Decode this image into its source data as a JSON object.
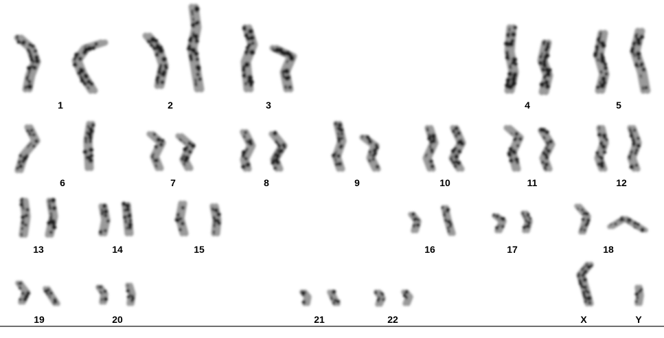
{
  "figure": {
    "kind": "human karyotype (G-banded)",
    "baseline_color": "#6d6d6d",
    "band_color": "#1a1a1a",
    "arm_color": "#9a9a9a"
  },
  "labels": {
    "c1": "1",
    "c2": "2",
    "c3": "3",
    "c4": "4",
    "c5": "5",
    "c6": "6",
    "c7": "7",
    "c8": "8",
    "c9": "9",
    "c10": "10",
    "c11": "11",
    "c12": "12",
    "c13": "13",
    "c14": "14",
    "c15": "15",
    "c16": "16",
    "c17": "17",
    "c18": "18",
    "c19": "19",
    "c20": "20",
    "c21": "21",
    "c22": "22",
    "cX": "X",
    "cY": "Y"
  }
}
